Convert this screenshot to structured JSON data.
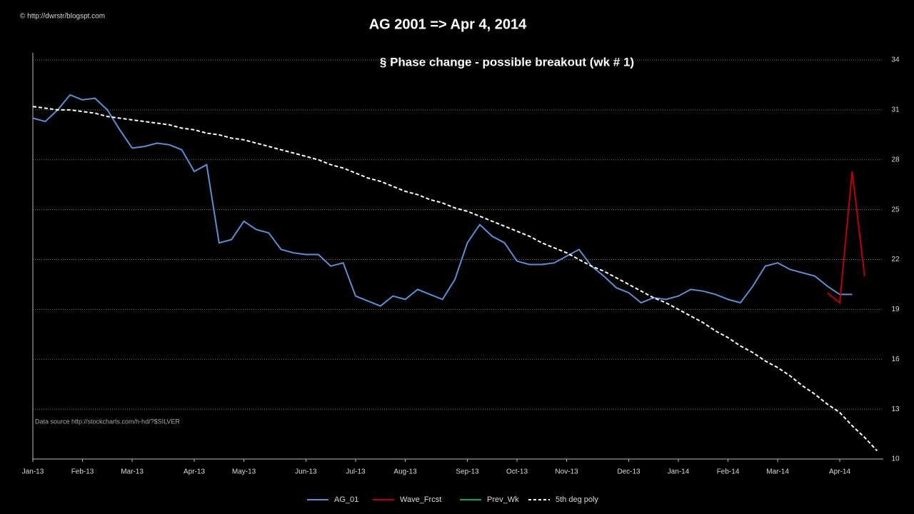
{
  "chart_data": {
    "type": "line",
    "title": "AG 2001 => Apr 4, 2014",
    "subtitle": "§ Phase change - possible breakout  (wk # 1)",
    "copyright": "© http://dwrstr/blogspt.com",
    "source": "Data source http://stockcharts.com/h-hd/?$SILVER",
    "categories": [
      "Jan-13",
      null,
      null,
      null,
      "Feb-13",
      null,
      null,
      null,
      "Mar-13",
      null,
      null,
      null,
      null,
      "Apr-13",
      null,
      null,
      null,
      "May-13",
      null,
      null,
      null,
      null,
      "Jun-13",
      null,
      null,
      null,
      "Jul-13",
      null,
      null,
      null,
      "Aug-13",
      null,
      null,
      null,
      null,
      "Sep-13",
      null,
      null,
      null,
      "Oct-13",
      null,
      null,
      null,
      "Nov-13",
      null,
      null,
      null,
      null,
      "Dec-13",
      null,
      null,
      null,
      "Jan-14",
      null,
      null,
      null,
      "Feb-14",
      null,
      null,
      null,
      "Mar-14",
      null,
      null,
      null,
      null,
      "Apr-14",
      null,
      null,
      null
    ],
    "series": [
      {
        "name": "AG_01",
        "color": "#5b8fd4",
        "values": [
          30.5,
          30.3,
          31.0,
          31.9,
          31.6,
          31.7,
          31.0,
          29.8,
          28.7,
          28.8,
          29.0,
          28.9,
          28.6,
          27.3,
          27.7,
          23.0,
          23.2,
          24.3,
          23.8,
          23.6,
          22.6,
          22.4,
          22.3,
          22.3,
          21.6,
          21.8,
          19.8,
          19.5,
          19.2,
          19.8,
          19.6,
          20.2,
          19.9,
          19.6,
          20.8,
          23.0,
          24.1,
          23.4,
          23.0,
          21.9,
          21.7,
          21.7,
          21.8,
          22.2,
          22.6,
          21.6,
          21.0,
          20.3,
          20.0,
          19.4,
          19.7,
          19.6,
          19.8,
          20.2,
          20.1,
          19.9,
          19.6,
          19.4,
          20.4,
          21.6,
          21.8,
          21.4,
          21.2,
          21.0,
          20.4,
          19.9,
          19.9,
          null,
          null
        ]
      },
      {
        "name": "Wave_Frcst",
        "color": "#c00000",
        "values": [
          null,
          null,
          null,
          null,
          null,
          null,
          null,
          null,
          null,
          null,
          null,
          null,
          null,
          null,
          null,
          null,
          null,
          null,
          null,
          null,
          null,
          null,
          null,
          null,
          null,
          null,
          null,
          null,
          null,
          null,
          null,
          null,
          null,
          null,
          null,
          null,
          null,
          null,
          null,
          null,
          null,
          null,
          null,
          null,
          null,
          null,
          null,
          null,
          null,
          null,
          null,
          null,
          null,
          null,
          null,
          null,
          null,
          null,
          null,
          null,
          null,
          null,
          null,
          null,
          20.0,
          19.4,
          27.3,
          21.0,
          null
        ]
      },
      {
        "name": "Prev_Wk",
        "color": "#00b050",
        "values": [
          null,
          null,
          null,
          null,
          null,
          null,
          null,
          null,
          null,
          null,
          null,
          null,
          null,
          null,
          null,
          null,
          null,
          null,
          null,
          null,
          null,
          null,
          null,
          null,
          null,
          null,
          null,
          null,
          null,
          null,
          null,
          null,
          null,
          null,
          null,
          null,
          null,
          null,
          null,
          null,
          null,
          null,
          null,
          null,
          null,
          null,
          null,
          null,
          null,
          null,
          null,
          null,
          null,
          null,
          null,
          null,
          null,
          null,
          null,
          null,
          null,
          null,
          null,
          null,
          null,
          null,
          null,
          null,
          null
        ]
      },
      {
        "name": "5th deg poly",
        "color": "#ffffff",
        "dashed": true,
        "values": [
          31.2,
          31.1,
          31.0,
          31.0,
          30.9,
          30.8,
          30.6,
          30.5,
          30.4,
          30.3,
          30.2,
          30.1,
          29.9,
          29.8,
          29.6,
          29.5,
          29.3,
          29.2,
          29.0,
          28.8,
          28.6,
          28.4,
          28.2,
          28.0,
          27.7,
          27.5,
          27.2,
          26.9,
          26.7,
          26.4,
          26.1,
          25.9,
          25.6,
          25.4,
          25.1,
          24.9,
          24.6,
          24.3,
          24.0,
          23.7,
          23.4,
          23.0,
          22.7,
          22.4,
          22.0,
          21.6,
          21.3,
          20.9,
          20.5,
          20.1,
          19.7,
          19.4,
          19.0,
          18.6,
          18.2,
          17.7,
          17.3,
          16.8,
          16.4,
          15.9,
          15.5,
          15.0,
          14.4,
          13.9,
          13.3,
          12.8,
          12.0,
          11.3,
          10.5
        ]
      }
    ],
    "ylim": [
      10,
      34
    ],
    "yticks": [
      10,
      13,
      16,
      19,
      22,
      25,
      28,
      31,
      34
    ],
    "grid": true
  }
}
